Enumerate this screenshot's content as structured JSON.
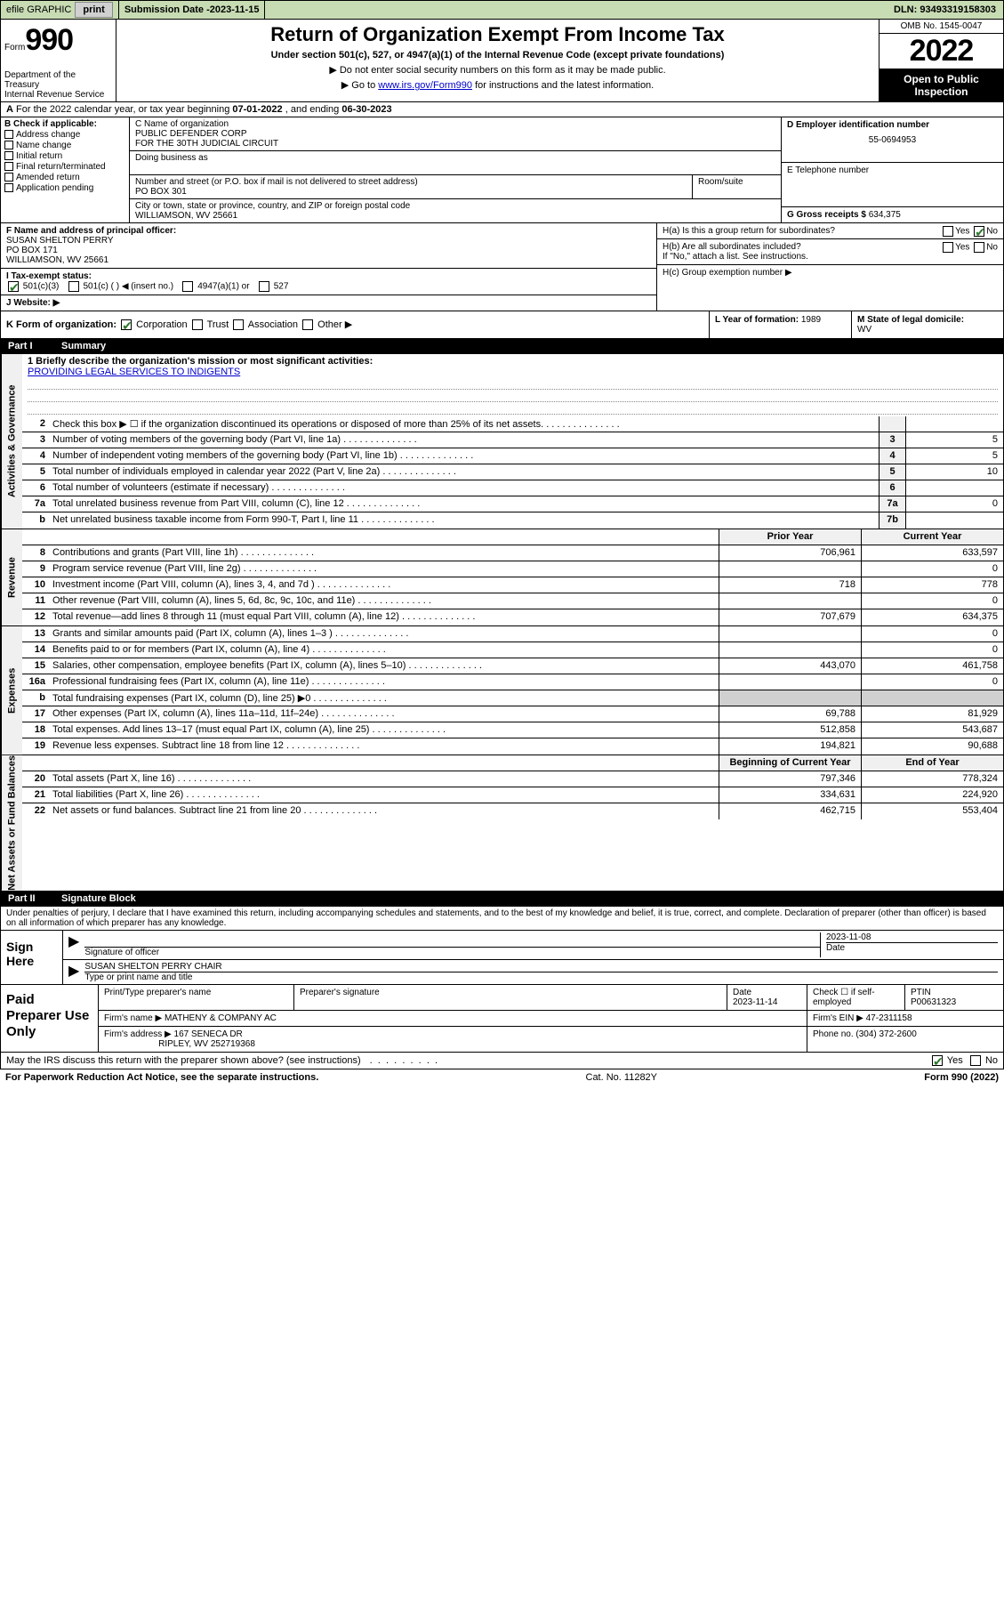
{
  "topbar": {
    "efile": "efile GRAPHIC",
    "print": "print",
    "submission_label": "Submission Date - ",
    "submission_date": "2023-11-15",
    "dln_label": "DLN: ",
    "dln": "93493319158303"
  },
  "header": {
    "form_prefix": "Form",
    "form_number": "990",
    "dept": "Department of the Treasury\nInternal Revenue Service",
    "title": "Return of Organization Exempt From Income Tax",
    "subtitle1": "Under section 501(c), 527, or 4947(a)(1) of the Internal Revenue Code (except private foundations)",
    "subtitle2": "▶ Do not enter social security numbers on this form as it may be made public.",
    "subtitle3_pre": "▶ Go to ",
    "subtitle3_link": "www.irs.gov/Form990",
    "subtitle3_post": " for instructions and the latest information.",
    "omb": "OMB No. 1545-0047",
    "year": "2022",
    "inspection": "Open to Public Inspection"
  },
  "row_a": {
    "text_pre": "For the 2022 calendar year, or tax year beginning ",
    "begin": "07-01-2022",
    "mid": " , and ending ",
    "end": "06-30-2023"
  },
  "col_b": {
    "label": "B Check if applicable:",
    "items": [
      "Address change",
      "Name change",
      "Initial return",
      "Final return/terminated",
      "Amended return",
      "Application pending"
    ]
  },
  "col_c": {
    "name_label": "C Name of organization",
    "name1": "PUBLIC DEFENDER CORP",
    "name2": "FOR THE 30TH JUDICIAL CIRCUIT",
    "dba_label": "Doing business as",
    "addr_label": "Number and street (or P.O. box if mail is not delivered to street address)",
    "room_label": "Room/suite",
    "addr1": "PO BOX 301",
    "city_label": "City or town, state or province, country, and ZIP or foreign postal code",
    "city": "WILLIAMSON, WV  25661"
  },
  "col_d": {
    "label": "D Employer identification number",
    "ein": "55-0694953",
    "e_label": "E Telephone number",
    "g_label": "G Gross receipts $ ",
    "g_val": "634,375"
  },
  "section_f": {
    "label": "F Name and address of principal officer:",
    "name": "SUSAN SHELTON PERRY",
    "addr1": "PO BOX 171",
    "addr2": "WILLIAMSON, WV  25661"
  },
  "section_h": {
    "ha": "H(a)  Is this a group return for subordinates?",
    "hb": "H(b)  Are all subordinates included?",
    "hb2": "If \"No,\" attach a list. See instructions.",
    "hc": "H(c)  Group exemption number ▶",
    "yes": "Yes",
    "no": "No"
  },
  "row_i": {
    "label": "I  Tax-exempt status:",
    "opt1": "501(c)(3)",
    "opt2": "501(c) (  ) ◀ (insert no.)",
    "opt3": "4947(a)(1) or",
    "opt4": "527"
  },
  "row_j": {
    "label": "J  Website: ▶"
  },
  "row_k": {
    "label": "K Form of organization:",
    "opts": [
      "Corporation",
      "Trust",
      "Association",
      "Other ▶"
    ]
  },
  "row_l": {
    "label": "L Year of formation: ",
    "val": "1989"
  },
  "row_m": {
    "label": "M State of legal domicile:",
    "val": "WV"
  },
  "part1": {
    "part": "Part I",
    "title": "Summary"
  },
  "mission": {
    "label": "1  Briefly describe the organization's mission or most significant activities:",
    "text": "PROVIDING LEGAL SERVICES TO INDIGENTS"
  },
  "gov_rows": [
    {
      "n": "2",
      "text": "Check this box ▶ ☐ if the organization discontinued its operations or disposed of more than 25% of its net assets.",
      "box": "",
      "val": ""
    },
    {
      "n": "3",
      "text": "Number of voting members of the governing body (Part VI, line 1a)",
      "box": "3",
      "val": "5"
    },
    {
      "n": "4",
      "text": "Number of independent voting members of the governing body (Part VI, line 1b)",
      "box": "4",
      "val": "5"
    },
    {
      "n": "5",
      "text": "Total number of individuals employed in calendar year 2022 (Part V, line 2a)",
      "box": "5",
      "val": "10"
    },
    {
      "n": "6",
      "text": "Total number of volunteers (estimate if necessary)",
      "box": "6",
      "val": ""
    },
    {
      "n": "7a",
      "text": "Total unrelated business revenue from Part VIII, column (C), line 12",
      "box": "7a",
      "val": "0"
    },
    {
      "n": "b",
      "text": "Net unrelated business taxable income from Form 990-T, Part I, line 11",
      "box": "7b",
      "val": ""
    }
  ],
  "prior_year": "Prior Year",
  "current_year": "Current Year",
  "rev_rows": [
    {
      "n": "8",
      "text": "Contributions and grants (Part VIII, line 1h)",
      "a": "706,961",
      "b": "633,597"
    },
    {
      "n": "9",
      "text": "Program service revenue (Part VIII, line 2g)",
      "a": "",
      "b": "0"
    },
    {
      "n": "10",
      "text": "Investment income (Part VIII, column (A), lines 3, 4, and 7d )",
      "a": "718",
      "b": "778"
    },
    {
      "n": "11",
      "text": "Other revenue (Part VIII, column (A), lines 5, 6d, 8c, 9c, 10c, and 11e)",
      "a": "",
      "b": "0"
    },
    {
      "n": "12",
      "text": "Total revenue—add lines 8 through 11 (must equal Part VIII, column (A), line 12)",
      "a": "707,679",
      "b": "634,375"
    }
  ],
  "exp_rows": [
    {
      "n": "13",
      "text": "Grants and similar amounts paid (Part IX, column (A), lines 1–3 )",
      "a": "",
      "b": "0"
    },
    {
      "n": "14",
      "text": "Benefits paid to or for members (Part IX, column (A), line 4)",
      "a": "",
      "b": "0"
    },
    {
      "n": "15",
      "text": "Salaries, other compensation, employee benefits (Part IX, column (A), lines 5–10)",
      "a": "443,070",
      "b": "461,758"
    },
    {
      "n": "16a",
      "text": "Professional fundraising fees (Part IX, column (A), line 11e)",
      "a": "",
      "b": "0"
    },
    {
      "n": "b",
      "text": "Total fundraising expenses (Part IX, column (D), line 25) ▶0",
      "a": "GRAY",
      "b": "GRAY"
    },
    {
      "n": "17",
      "text": "Other expenses (Part IX, column (A), lines 11a–11d, 11f–24e)",
      "a": "69,788",
      "b": "81,929"
    },
    {
      "n": "18",
      "text": "Total expenses. Add lines 13–17 (must equal Part IX, column (A), line 25)",
      "a": "512,858",
      "b": "543,687"
    },
    {
      "n": "19",
      "text": "Revenue less expenses. Subtract line 18 from line 12",
      "a": "194,821",
      "b": "90,688"
    }
  ],
  "boy": "Beginning of Current Year",
  "eoy": "End of Year",
  "net_rows": [
    {
      "n": "20",
      "text": "Total assets (Part X, line 16)",
      "a": "797,346",
      "b": "778,324"
    },
    {
      "n": "21",
      "text": "Total liabilities (Part X, line 26)",
      "a": "334,631",
      "b": "224,920"
    },
    {
      "n": "22",
      "text": "Net assets or fund balances. Subtract line 21 from line 20",
      "a": "462,715",
      "b": "553,404"
    }
  ],
  "side_labels": {
    "gov": "Activities & Governance",
    "rev": "Revenue",
    "exp": "Expenses",
    "net": "Net Assets or Fund Balances"
  },
  "part2": {
    "part": "Part II",
    "title": "Signature Block"
  },
  "sig_decl": "Under penalties of perjury, I declare that I have examined this return, including accompanying schedules and statements, and to the best of my knowledge and belief, it is true, correct, and complete. Declaration of preparer (other than officer) is based on all information of which preparer has any knowledge.",
  "sign_here": "Sign Here",
  "sig": {
    "date": "2023-11-08",
    "sig_of_officer": "Signature of officer",
    "date_label": "Date",
    "name_title": "SUSAN SHELTON PERRY CHAIR",
    "type_label": "Type or print name and title"
  },
  "paid_label": "Paid Preparer Use Only",
  "paid": {
    "print_name_label": "Print/Type preparer's name",
    "prep_sig_label": "Preparer's signature",
    "date_label": "Date",
    "date": "2023-11-14",
    "check_label": "Check ☐ if self-employed",
    "ptin_label": "PTIN",
    "ptin": "P00631323",
    "firm_name_label": "Firm's name    ▶",
    "firm_name": "MATHENY & COMPANY AC",
    "firm_ein_label": "Firm's EIN ▶",
    "firm_ein": "47-2311158",
    "firm_addr_label": "Firm's address ▶",
    "firm_addr1": "167 SENECA DR",
    "firm_addr2": "RIPLEY, WV 252719368",
    "phone_label": "Phone no. ",
    "phone": "(304) 372-2600"
  },
  "may_irs": "May the IRS discuss this return with the preparer shown above? (see instructions)",
  "paperwork": "For Paperwork Reduction Act Notice, see the separate instructions.",
  "cat": "Cat. No. 11282Y",
  "form_footer": "Form 990 (2022)",
  "yes": "Yes",
  "no": "No"
}
